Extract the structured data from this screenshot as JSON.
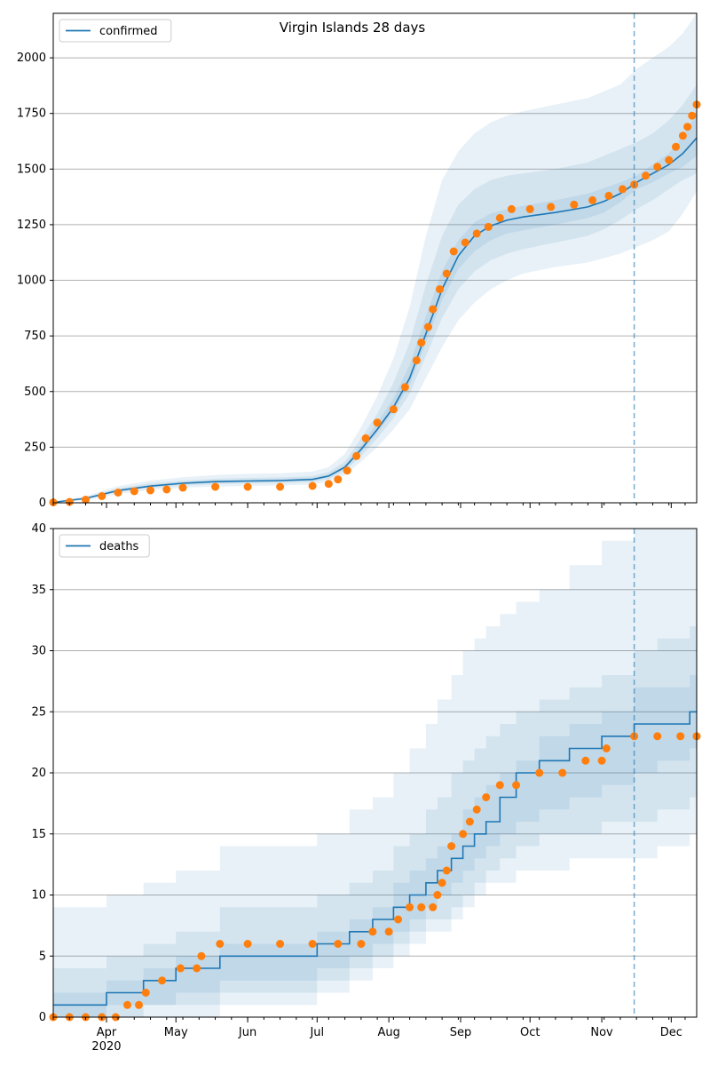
{
  "figure": {
    "title": "Virgin Islands 28 days"
  },
  "colors": {
    "model": "#1f77b4",
    "observed": "#ff7f0e",
    "band": "#1f77b4",
    "grid": "#b0b0b0",
    "frame": "#000000",
    "forecast_line": "#1f77b4"
  },
  "x_ticks": [
    {
      "label": "Apr",
      "sub": "2020"
    },
    {
      "label": "May",
      "sub": ""
    },
    {
      "label": "Jun",
      "sub": ""
    },
    {
      "label": "Jul",
      "sub": ""
    },
    {
      "label": "Aug",
      "sub": ""
    },
    {
      "label": "Sep",
      "sub": ""
    },
    {
      "label": "Oct",
      "sub": ""
    },
    {
      "label": "Nov",
      "sub": ""
    },
    {
      "label": "Dec",
      "sub": ""
    }
  ],
  "chart_data": [
    {
      "type": "line",
      "title": "Virgin Islands 28 days",
      "legend": {
        "entries": [
          "confirmed"
        ],
        "placement": "top-left"
      },
      "x_range": [
        "2020-03-09",
        "2020-12-12"
      ],
      "forecast_start": "2020-11-15",
      "ylim": [
        0,
        2200
      ],
      "yticks": [
        0,
        250,
        500,
        750,
        1000,
        1250,
        1500,
        1750,
        2000
      ],
      "grid": "horizontal",
      "series": [
        {
          "name": "confirmed",
          "kind": "model",
          "x": [
            "2020-03-09",
            "2020-03-23",
            "2020-04-06",
            "2020-04-20",
            "2020-05-04",
            "2020-05-18",
            "2020-06-01",
            "2020-06-15",
            "2020-06-29",
            "2020-07-06",
            "2020-07-13",
            "2020-07-20",
            "2020-07-27",
            "2020-08-03",
            "2020-08-10",
            "2020-08-17",
            "2020-08-24",
            "2020-08-31",
            "2020-09-07",
            "2020-09-14",
            "2020-09-21",
            "2020-09-28",
            "2020-10-12",
            "2020-10-26",
            "2020-11-02",
            "2020-11-09",
            "2020-11-16",
            "2020-11-23",
            "2020-11-30",
            "2020-12-06",
            "2020-12-12"
          ],
          "y": [
            2,
            20,
            55,
            75,
            88,
            95,
            98,
            100,
            105,
            120,
            160,
            240,
            330,
            430,
            560,
            760,
            960,
            1110,
            1200,
            1245,
            1270,
            1285,
            1305,
            1330,
            1355,
            1390,
            1440,
            1480,
            1520,
            1570,
            1640
          ],
          "bands": [
            {
              "level": "outer",
              "lower": [
                0,
                12,
                40,
                58,
                68,
                73,
                76,
                78,
                82,
                95,
                125,
                185,
                250,
                330,
                420,
                560,
                700,
                820,
                900,
                960,
                1000,
                1030,
                1060,
                1080,
                1100,
                1120,
                1150,
                1180,
                1220,
                1300,
                1400
              ],
              "upper": [
                5,
                30,
                75,
                100,
                115,
                125,
                130,
                133,
                140,
                160,
                220,
                340,
                480,
                650,
                880,
                1200,
                1450,
                1580,
                1660,
                1710,
                1740,
                1760,
                1790,
                1820,
                1850,
                1880,
                1950,
                2000,
                2050,
                2110,
                2200
              ]
            },
            {
              "level": "middle",
              "lower": [
                1,
                16,
                48,
                66,
                77,
                84,
                87,
                89,
                93,
                107,
                142,
                210,
                290,
                380,
                490,
                660,
                830,
                960,
                1040,
                1090,
                1120,
                1140,
                1170,
                1200,
                1230,
                1270,
                1320,
                1360,
                1410,
                1450,
                1480
              ],
              "upper": [
                3,
                25,
                65,
                88,
                100,
                108,
                112,
                114,
                120,
                138,
                185,
                290,
                400,
                540,
                720,
                980,
                1200,
                1340,
                1410,
                1450,
                1470,
                1480,
                1500,
                1530,
                1560,
                1590,
                1620,
                1660,
                1720,
                1790,
                1880
              ]
            },
            {
              "level": "inner",
              "lower": [
                1,
                18,
                52,
                71,
                83,
                90,
                93,
                95,
                100,
                114,
                152,
                228,
                315,
                410,
                530,
                720,
                910,
                1050,
                1130,
                1180,
                1210,
                1225,
                1250,
                1280,
                1305,
                1350,
                1410,
                1440,
                1480,
                1510,
                1560
              ],
              "upper": [
                2,
                22,
                59,
                80,
                94,
                101,
                104,
                106,
                112,
                128,
                170,
                260,
                360,
                470,
                620,
                840,
                1040,
                1180,
                1260,
                1300,
                1320,
                1335,
                1360,
                1390,
                1415,
                1440,
                1470,
                1520,
                1570,
                1650,
                1750
              ]
            }
          ]
        },
        {
          "name": "",
          "kind": "observed",
          "x": [
            "2020-03-09",
            "2020-03-16",
            "2020-03-23",
            "2020-03-30",
            "2020-04-06",
            "2020-04-13",
            "2020-04-20",
            "2020-04-27",
            "2020-05-04",
            "2020-05-18",
            "2020-06-01",
            "2020-06-15",
            "2020-06-29",
            "2020-07-06",
            "2020-07-10",
            "2020-07-14",
            "2020-07-18",
            "2020-07-22",
            "2020-07-27",
            "2020-08-03",
            "2020-08-08",
            "2020-08-13",
            "2020-08-15",
            "2020-08-18",
            "2020-08-20",
            "2020-08-23",
            "2020-08-26",
            "2020-08-29",
            "2020-09-03",
            "2020-09-08",
            "2020-09-13",
            "2020-09-18",
            "2020-09-23",
            "2020-10-01",
            "2020-10-10",
            "2020-10-20",
            "2020-10-28",
            "2020-11-04",
            "2020-11-10",
            "2020-11-15",
            "2020-11-20",
            "2020-11-25",
            "2020-11-30",
            "2020-12-03",
            "2020-12-06",
            "2020-12-08",
            "2020-12-10",
            "2020-12-12"
          ],
          "y": [
            2,
            4,
            14,
            30,
            46,
            52,
            56,
            60,
            68,
            72,
            72,
            72,
            76,
            85,
            105,
            145,
            210,
            290,
            360,
            420,
            520,
            640,
            720,
            790,
            870,
            960,
            1030,
            1130,
            1170,
            1210,
            1240,
            1280,
            1320,
            1320,
            1330,
            1340,
            1360,
            1380,
            1410,
            1430,
            1470,
            1510,
            1540,
            1600,
            1650,
            1690,
            1740,
            1790
          ]
        }
      ]
    },
    {
      "type": "line",
      "legend": {
        "entries": [
          "deaths"
        ],
        "placement": "top-left"
      },
      "x_range": [
        "2020-03-09",
        "2020-12-12"
      ],
      "forecast_start": "2020-11-15",
      "ylim": [
        0,
        40
      ],
      "yticks": [
        0,
        5,
        10,
        15,
        20,
        25,
        30,
        35,
        40
      ],
      "grid": "horizontal",
      "series": [
        {
          "name": "deaths",
          "kind": "model",
          "step": true,
          "x": [
            "2020-03-09",
            "2020-04-01",
            "2020-04-17",
            "2020-05-01",
            "2020-05-20",
            "2020-07-01",
            "2020-07-15",
            "2020-07-25",
            "2020-08-03",
            "2020-08-10",
            "2020-08-17",
            "2020-08-22",
            "2020-08-28",
            "2020-09-02",
            "2020-09-07",
            "2020-09-12",
            "2020-09-18",
            "2020-09-25",
            "2020-10-05",
            "2020-10-18",
            "2020-11-01",
            "2020-11-15",
            "2020-11-25",
            "2020-12-09",
            "2020-12-12"
          ],
          "y": [
            1,
            2,
            3,
            4,
            5,
            6,
            7,
            8,
            9,
            10,
            11,
            12,
            13,
            14,
            15,
            16,
            18,
            20,
            21,
            22,
            23,
            24,
            24,
            25,
            25
          ],
          "bands": [
            {
              "level": "outer",
              "lower": [
                0,
                0,
                0,
                0,
                1,
                2,
                3,
                4,
                5,
                6,
                7,
                7,
                8,
                9,
                10,
                11,
                11,
                12,
                12,
                13,
                13,
                13,
                14,
                15,
                16
              ],
              "upper": [
                9,
                10,
                11,
                12,
                14,
                15,
                17,
                18,
                20,
                22,
                24,
                26,
                28,
                30,
                31,
                32,
                33,
                34,
                35,
                37,
                39,
                41,
                42,
                43,
                44
              ]
            },
            {
              "level": "middle",
              "lower": [
                0,
                0,
                1,
                1,
                2,
                3,
                4,
                5,
                6,
                7,
                8,
                8,
                9,
                10,
                11,
                12,
                13,
                14,
                15,
                15,
                16,
                16,
                17,
                18,
                19
              ],
              "upper": [
                4,
                5,
                6,
                7,
                9,
                10,
                11,
                12,
                14,
                15,
                17,
                18,
                20,
                21,
                22,
                23,
                24,
                25,
                26,
                27,
                28,
                30,
                31,
                32,
                33
              ]
            },
            {
              "level": "inner",
              "lower": [
                0,
                1,
                1,
                2,
                3,
                4,
                5,
                6,
                7,
                8,
                9,
                10,
                11,
                12,
                13,
                14,
                15,
                16,
                17,
                18,
                19,
                20,
                21,
                22,
                22
              ],
              "upper": [
                2,
                3,
                4,
                5,
                6,
                7,
                8,
                9,
                11,
                12,
                13,
                14,
                15,
                17,
                18,
                19,
                20,
                21,
                23,
                24,
                25,
                27,
                27,
                28,
                28
              ]
            }
          ]
        },
        {
          "name": "",
          "kind": "observed",
          "x": [
            "2020-03-09",
            "2020-03-16",
            "2020-03-23",
            "2020-03-30",
            "2020-04-05",
            "2020-04-10",
            "2020-04-15",
            "2020-04-18",
            "2020-04-25",
            "2020-05-03",
            "2020-05-10",
            "2020-05-12",
            "2020-05-20",
            "2020-06-01",
            "2020-06-15",
            "2020-06-29",
            "2020-07-10",
            "2020-07-20",
            "2020-07-25",
            "2020-08-01",
            "2020-08-05",
            "2020-08-10",
            "2020-08-15",
            "2020-08-20",
            "2020-08-22",
            "2020-08-24",
            "2020-08-26",
            "2020-08-28",
            "2020-09-02",
            "2020-09-05",
            "2020-09-08",
            "2020-09-12",
            "2020-09-18",
            "2020-09-25",
            "2020-10-05",
            "2020-10-15",
            "2020-10-25",
            "2020-11-01",
            "2020-11-03",
            "2020-11-15",
            "2020-11-25",
            "2020-12-05",
            "2020-12-12"
          ],
          "y": [
            0,
            0,
            0,
            0,
            0,
            1,
            1,
            2,
            3,
            4,
            4,
            5,
            6,
            6,
            6,
            6,
            6,
            6,
            7,
            7,
            8,
            9,
            9,
            9,
            10,
            11,
            12,
            14,
            15,
            16,
            17,
            18,
            19,
            19,
            20,
            20,
            21,
            21,
            22,
            23,
            23,
            23,
            23
          ]
        }
      ]
    }
  ]
}
